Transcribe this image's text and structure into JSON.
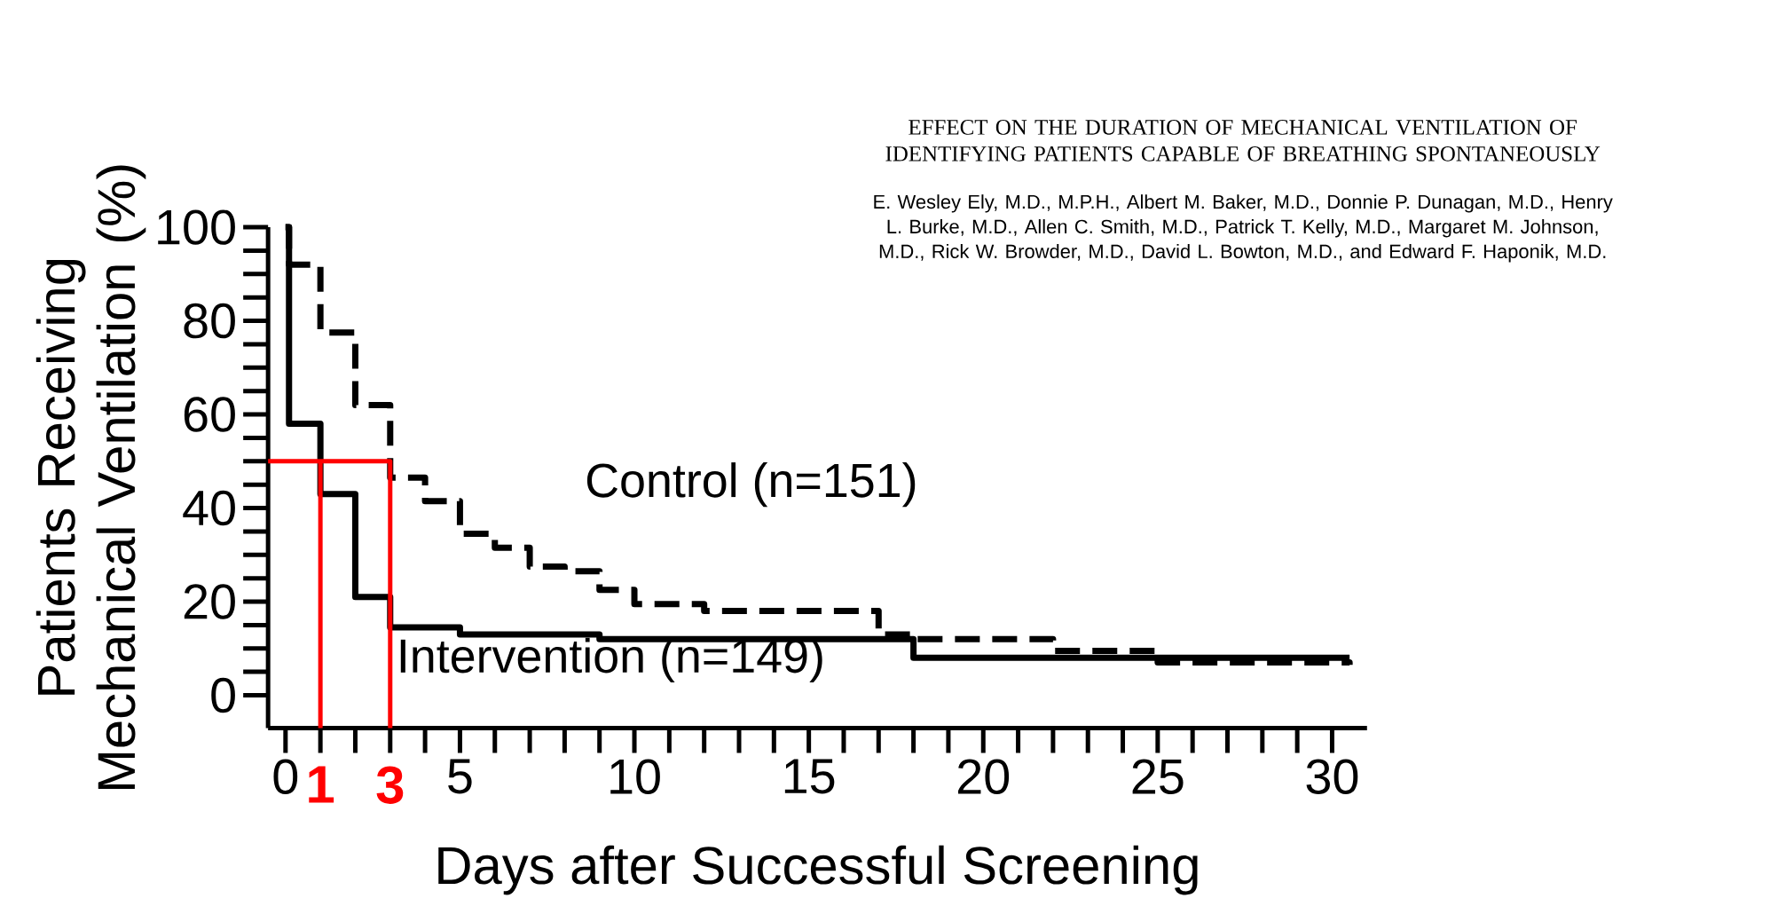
{
  "chart_data": {
    "type": "step",
    "title": "EFFECT ON THE DURATION OF MECHANICAL VENTILATION OF IDENTIFYING PATIENTS CAPABLE OF BREATHING SPONTANEOUSLY",
    "subtitle": "E. Wesley Ely, M.D., M.P.H., Albert M. Baker, M.D., Donnie P. Dunagan, M.D., Henry L. Burke, M.D., Allen C. Smith, M.D., Patrick T. Kelly, M.D., Margaret M. Johnson, M.D., Rick W. Browder, M.D., David L. Bowton, M.D., and Edward F. Haponik, M.D.",
    "xlabel": "Days after Successful Screening",
    "ylabel": "Patients Receiving Mechanical Ventilation (%)",
    "xlim": [
      -0.5,
      31
    ],
    "ylim": [
      -7,
      100
    ],
    "xticks": [
      0,
      5,
      10,
      15,
      20,
      25,
      30
    ],
    "yticks": [
      0,
      20,
      40,
      60,
      80,
      100
    ],
    "marker": "none",
    "series": [
      {
        "name": "Control (n=151)",
        "color": "#000000",
        "line_style": "dashed",
        "x": [
          0,
          0.1,
          1,
          2,
          3,
          4,
          5,
          6,
          7,
          8,
          9,
          10,
          12,
          17,
          18,
          22,
          25,
          30.5
        ],
        "values": [
          100,
          92,
          77.5,
          62,
          46.5,
          41.5,
          34.5,
          31.5,
          27.5,
          26.5,
          22.5,
          19.5,
          18,
          13,
          12,
          9.5,
          7,
          6.5
        ]
      },
      {
        "name": "Intervention (n=149)",
        "color": "#000000",
        "line_style": "solid",
        "x": [
          0,
          0.1,
          1,
          2,
          3,
          5,
          9,
          18,
          30.5
        ],
        "values": [
          100,
          58,
          43,
          21,
          14.5,
          13,
          12,
          8,
          8
        ]
      },
      {
        "type": "line",
        "color": "#ff0000",
        "line_style": "solid",
        "x": [
          -0.5,
          3,
          3
        ],
        "values": [
          50,
          50,
          -7
        ]
      },
      {
        "type": "line",
        "color": "#ff0000",
        "line_style": "solid",
        "x": [
          1,
          1
        ],
        "values": [
          50,
          -7
        ]
      }
    ],
    "annotations": [
      {
        "text": "1",
        "x": 1
      },
      {
        "text": "3",
        "x": 3
      }
    ]
  }
}
